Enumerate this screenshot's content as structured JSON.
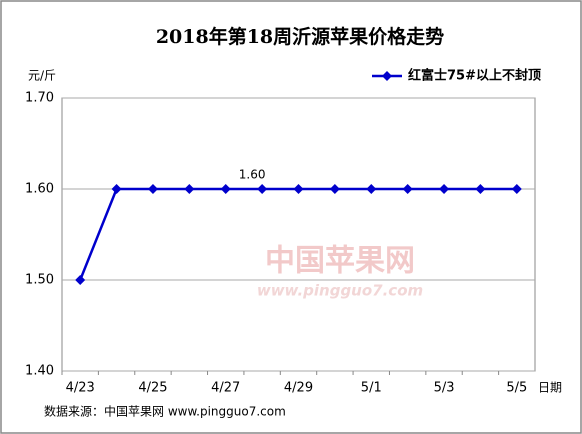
{
  "chart_data": {
    "type": "line",
    "title": "2018年第18周沂源苹果价格走势",
    "y_label": "元/斤",
    "x_label": "日期",
    "source": "数据来源：中国苹果网 www.pingguo7.com",
    "watermark": [
      "中国苹果网",
      "www.pingguo7.com"
    ],
    "categories": [
      "4/23",
      null,
      "4/25",
      null,
      "4/27",
      null,
      "4/29",
      null,
      "5/1",
      null,
      "5/3",
      null,
      "5/5"
    ],
    "series": [
      {
        "name": "红富士75#以上不封顶",
        "color": "#0000cc",
        "values": [
          1.5,
          1.6,
          1.6,
          1.6,
          1.6,
          1.6,
          1.6,
          1.6,
          1.6,
          1.6,
          1.6,
          1.6,
          1.6
        ],
        "value_labels": [
          null,
          null,
          null,
          null,
          null,
          "1.60",
          null,
          null,
          null,
          null,
          null,
          null,
          null
        ]
      }
    ],
    "ylim": [
      1.4,
      1.7
    ],
    "yticks": [
      {
        "value": 1.4,
        "label": "1.40"
      },
      {
        "value": 1.5,
        "label": "1.50"
      },
      {
        "value": 1.6,
        "label": "1.60"
      },
      {
        "value": 1.7,
        "label": "1.70"
      }
    ],
    "grid": true,
    "legend": "top-right"
  }
}
